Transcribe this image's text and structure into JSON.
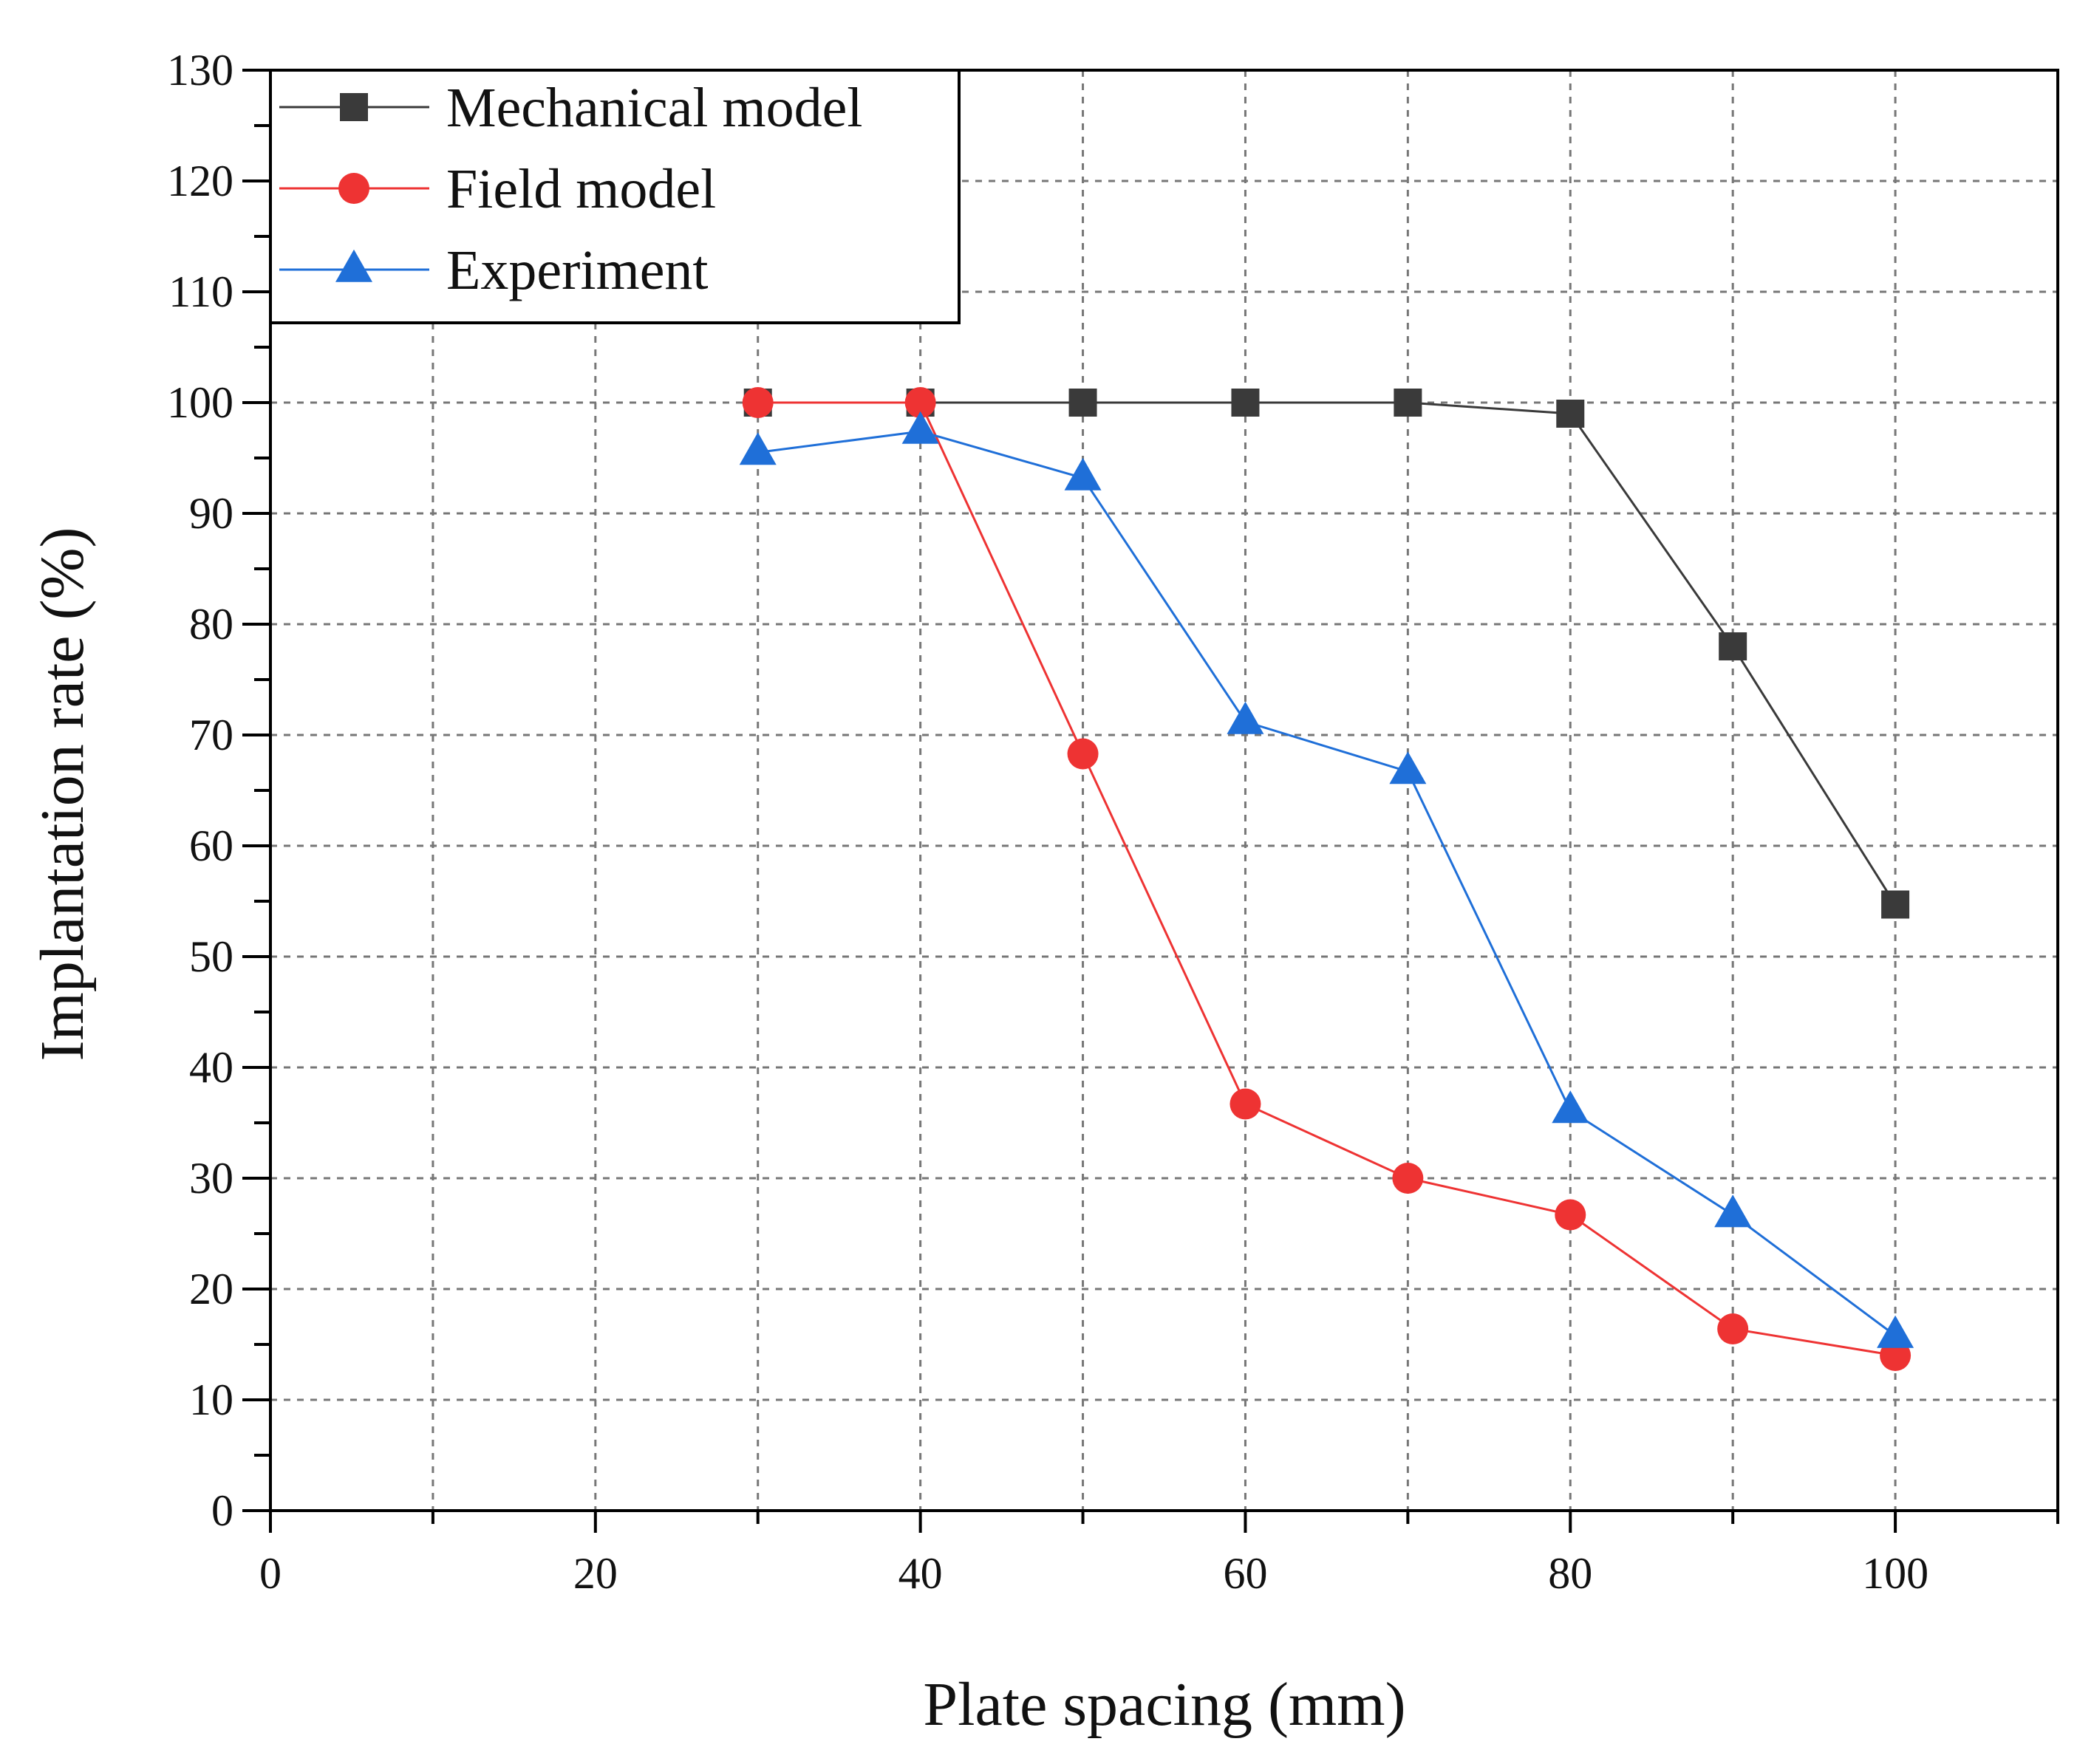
{
  "colors": {
    "mechanical": "#3a3a3a",
    "field": "#ee3333",
    "experiment": "#1f6fd8",
    "axis": "#000000",
    "grid": "#777777"
  },
  "chart_data": {
    "type": "line",
    "xlabel": "Plate spacing (mm)",
    "ylabel": "Implantation rate (%)",
    "xlim": [
      0,
      110
    ],
    "ylim": [
      0,
      130
    ],
    "xticks": [
      0,
      20,
      40,
      60,
      80,
      100
    ],
    "xtick_labels": [
      "0",
      "20",
      "40",
      "60",
      "80",
      "100"
    ],
    "yticks": [
      0,
      10,
      20,
      30,
      40,
      50,
      60,
      70,
      80,
      90,
      100,
      110,
      120,
      130
    ],
    "ytick_labels": [
      "0",
      "10",
      "20",
      "30",
      "40",
      "50",
      "60",
      "70",
      "80",
      "90",
      "100",
      "110",
      "120",
      "130"
    ],
    "grid": true,
    "legend_position": "top-left",
    "x": [
      30,
      40,
      50,
      60,
      70,
      80,
      90,
      100
    ],
    "series": [
      {
        "name": "Mechanical model",
        "marker": "square",
        "color_key": "mechanical",
        "values": [
          100,
          100,
          100,
          100,
          100,
          99,
          78,
          54.7
        ]
      },
      {
        "name": "Field model",
        "marker": "circle",
        "color_key": "field",
        "values": [
          100,
          100,
          68.3,
          36.7,
          30,
          26.7,
          16.4,
          14
        ]
      },
      {
        "name": "Experiment",
        "marker": "triangle",
        "color_key": "experiment",
        "values": [
          95.5,
          97.4,
          93.2,
          71.2,
          66.7,
          36.1,
          26.7,
          15.8
        ]
      }
    ]
  }
}
